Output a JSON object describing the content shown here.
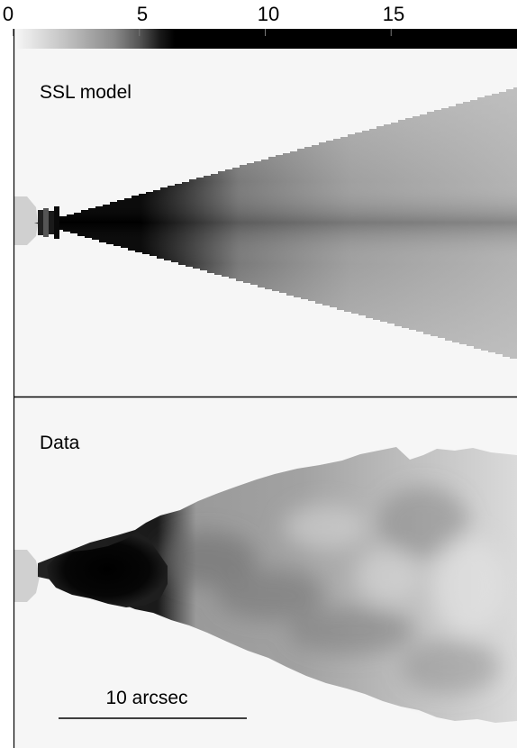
{
  "figure": {
    "colorbar": {
      "tick_labels": [
        "0",
        "5",
        "10",
        "15"
      ],
      "tick_values": [
        0,
        5,
        10,
        15
      ],
      "range": [
        0,
        20
      ],
      "colormap": "grayscale-inverted",
      "low_color": "#f4f4f4",
      "high_color": "#000000"
    },
    "panels": [
      {
        "label": "SSL model"
      },
      {
        "label": "Data"
      }
    ],
    "scale_bar": {
      "label": "10 arcsec"
    }
  },
  "chart_data": {
    "type": "heatmap",
    "colorbar_ticks": [
      0,
      5,
      10,
      15
    ],
    "colorbar_range": [
      0,
      20
    ],
    "panels": [
      "SSL model",
      "Data"
    ],
    "scale_bar": "10 arcsec"
  }
}
